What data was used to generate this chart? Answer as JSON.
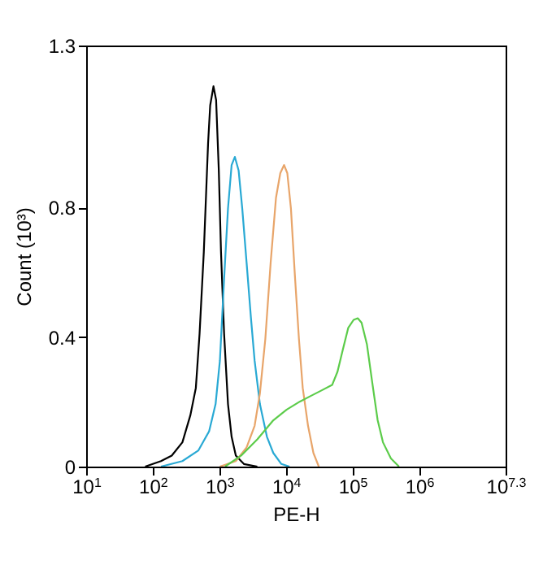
{
  "chart_data": {
    "type": "line",
    "xlabel": "PE-H",
    "ylabel": "Count (10³)",
    "log": "x",
    "xlim": [
      10,
      19952623
    ],
    "ylim": [
      0,
      1.3
    ],
    "xticks": [
      {
        "value": 10,
        "label": "10$^{1}$"
      },
      {
        "value": 100,
        "label": "10$^{2}$"
      },
      {
        "value": 1000,
        "label": "10$^{3}$"
      },
      {
        "value": 10000,
        "label": "10$^{4}$"
      },
      {
        "value": 100000,
        "label": "10$^{5}$"
      },
      {
        "value": 1000000,
        "label": "10$^{6}$"
      },
      {
        "value": 19952623,
        "label": "10$^{7.3}$"
      }
    ],
    "yticks": [
      0,
      0.4,
      0.8,
      1.3
    ],
    "grid": false,
    "marker": "none",
    "line_style": "solid",
    "series": [
      {
        "color": "#000000",
        "x": [
          77,
          133,
          193,
          279,
          368,
          444,
          505,
          585,
          678,
          729,
          817,
          895,
          982,
          1060,
          1180,
          1350,
          1530,
          1770,
          2340,
          3720
        ],
        "values": [
          0,
          0.017,
          0.034,
          0.075,
          0.159,
          0.243,
          0.41,
          0.663,
          0.998,
          1.115,
          1.174,
          1.132,
          0.915,
          0.663,
          0.41,
          0.193,
          0.092,
          0.034,
          0.008,
          0
        ]
      },
      {
        "color": "#29a9d4",
        "x": [
          133,
          279,
          486,
          703,
          879,
          1020,
          1180,
          1350,
          1530,
          1710,
          1950,
          2210,
          2570,
          2980,
          3390,
          4070,
          5190,
          6470,
          8550,
          11300
        ],
        "values": [
          0,
          0.017,
          0.05,
          0.109,
          0.193,
          0.327,
          0.579,
          0.797,
          0.931,
          0.956,
          0.914,
          0.797,
          0.629,
          0.461,
          0.327,
          0.193,
          0.092,
          0.042,
          0.008,
          0
        ]
      },
      {
        "color": "#e8a56a",
        "x": [
          1020,
          1770,
          2570,
          3390,
          4070,
          4910,
          5900,
          7100,
          8240,
          9380,
          10500,
          11900,
          13600,
          15700,
          17900,
          21500,
          25900,
          31200
        ],
        "values": [
          0,
          0.017,
          0.059,
          0.126,
          0.226,
          0.394,
          0.629,
          0.83,
          0.906,
          0.931,
          0.906,
          0.797,
          0.595,
          0.394,
          0.243,
          0.126,
          0.042,
          0
        ]
      },
      {
        "color": "#5ccc4a",
        "x": [
          1220,
          2130,
          3720,
          6470,
          10300,
          16300,
          23600,
          34200,
          49500,
          59600,
          71600,
          86300,
          104000,
          120000,
          137000,
          165000,
          198000,
          239000,
          287000,
          378000,
          500000
        ],
        "values": [
          0,
          0.034,
          0.084,
          0.143,
          0.176,
          0.201,
          0.218,
          0.235,
          0.252,
          0.293,
          0.361,
          0.428,
          0.453,
          0.458,
          0.444,
          0.377,
          0.26,
          0.143,
          0.075,
          0.025,
          0
        ]
      }
    ]
  }
}
